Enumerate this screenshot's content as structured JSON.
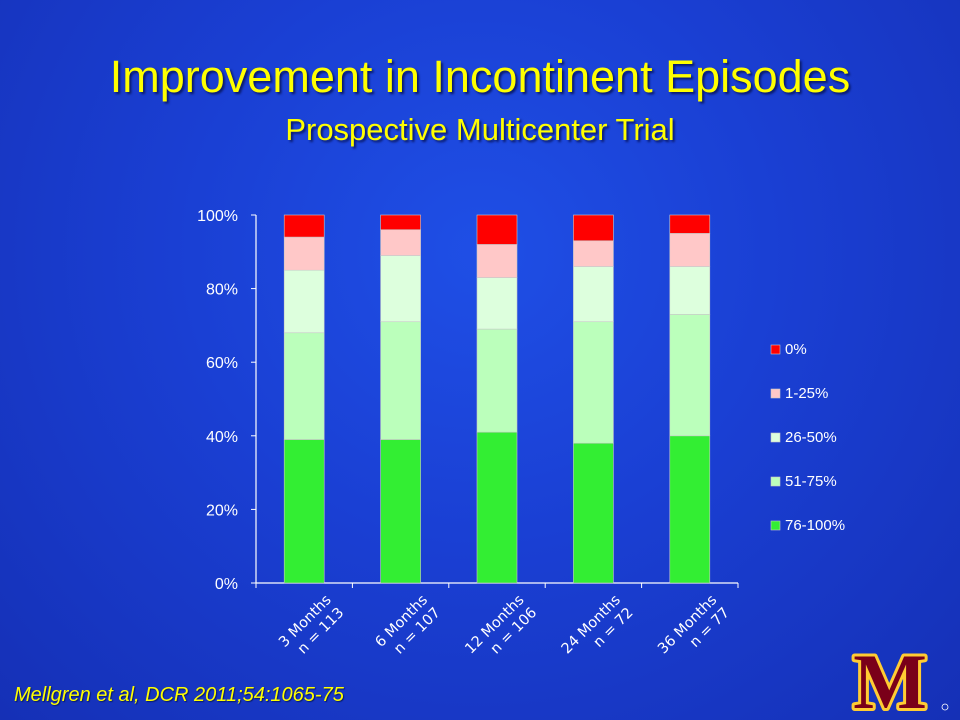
{
  "title": "Improvement in Incontinent Episodes",
  "subtitle": "Prospective Multicenter Trial",
  "citation": "Mellgren et al, DCR 2011;54:1065-75",
  "logo": {
    "letter": "M",
    "icon": "university-of-minnesota-m-logo",
    "color": "#7a0019",
    "accent": "#ffcc33"
  },
  "chart_data": {
    "type": "bar",
    "stacked": true,
    "categories": [
      [
        "3 Months",
        "n = 113"
      ],
      [
        "6 Months",
        "n = 107"
      ],
      [
        "12 Months",
        "n = 106"
      ],
      [
        "24 Months",
        "n = 72"
      ],
      [
        "36 Months",
        "n = 77"
      ]
    ],
    "ylim": [
      0,
      100
    ],
    "yticks": [
      "0%",
      "20%",
      "40%",
      "60%",
      "80%",
      "100%"
    ],
    "ytick_values": [
      0,
      20,
      40,
      60,
      80,
      100
    ],
    "legend_position": "right",
    "series": [
      {
        "name": "76-100%",
        "color": "#33ee33",
        "values": [
          39,
          39,
          41,
          38,
          40
        ]
      },
      {
        "name": "51-75%",
        "color": "#bbffbb",
        "values": [
          29,
          32,
          28,
          33,
          33
        ]
      },
      {
        "name": "26-50%",
        "color": "#ddffdd",
        "values": [
          17,
          18,
          14,
          15,
          13
        ]
      },
      {
        "name": "1-25%",
        "color": "#ffc8c8",
        "values": [
          9,
          7,
          9,
          7,
          9
        ]
      },
      {
        "name": "0%",
        "color": "#ff0000",
        "values": [
          6,
          4,
          8,
          7,
          5
        ]
      }
    ]
  }
}
